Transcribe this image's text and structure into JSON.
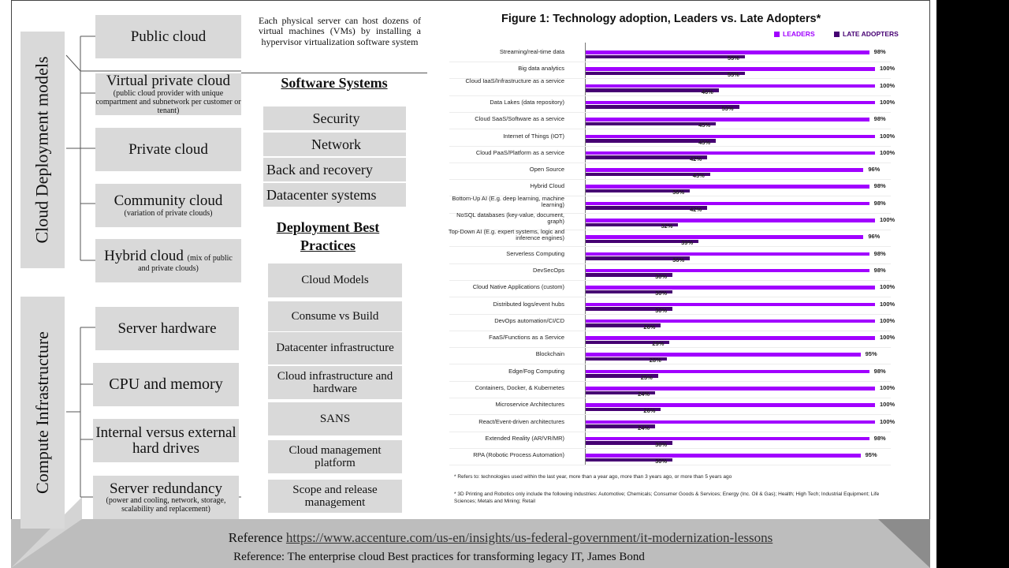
{
  "left": {
    "cloud_deployment_label": "Cloud Deployment models",
    "compute_label": "Compute Infrastructure",
    "deployment_models": [
      {
        "main": "Public cloud",
        "sub": ""
      },
      {
        "main": "Virtual private cloud",
        "sub": "(public cloud provider with unique compartment and subnetwork per customer or tenant)"
      },
      {
        "main": "Private cloud",
        "sub": ""
      },
      {
        "main": "Community cloud",
        "sub": "(variation of private clouds)"
      },
      {
        "main": "Hybrid cloud ",
        "inline": "(mix of public",
        "sub": "and private clouds)"
      }
    ],
    "compute_items": [
      {
        "main": "Server hardware",
        "sub": ""
      },
      {
        "main": "CPU and memory",
        "sub": ""
      },
      {
        "main": "Internal versus external hard drives",
        "sub": ""
      },
      {
        "main": "Server redundancy",
        "sub": "(power and cooling, network, storage, scalability and replacement)"
      }
    ]
  },
  "middle": {
    "note": "Each physical server can host dozens of virtual machines (VMs) by installing a hypervisor virtualization software system",
    "software_heading": "Software Systems",
    "software_items": [
      "Security",
      "Network",
      "Back and recovery",
      "Datacenter systems"
    ],
    "best_heading": "Deployment Best Practices",
    "best_items": [
      "Cloud Models",
      "Consume vs Build",
      "Datacenter infrastructure",
      "Cloud infrastructure and hardware",
      "SANS",
      "Cloud management platform",
      "Scope and release management"
    ]
  },
  "figure": {
    "title": "Figure 1: Technology adoption, Leaders vs. Late Adopters*",
    "legend_leaders": "LEADERS",
    "legend_late": "LATE ADOPTERS",
    "footnote1": "* Refers to: technologies used within the last year, more than a year ago, more than 3 years ago, or more than 5 years ago",
    "footnote2": "* 3D Printing and Robotics only include the following industries: Automotive; Chemicals; Consumer Goods & Services; Energy (Inc. Oil & Gas); Health; High Tech; Industrial Equipment; Life Sciences; Metals and Mining; Retail"
  },
  "chart_data": {
    "type": "bar",
    "title": "Figure 1: Technology adoption, Leaders vs. Late Adopters*",
    "orientation": "horizontal",
    "categories": [
      "Streaming/real-time data",
      "Big data analytics",
      "Cloud IaaS/Infrastructure as a service",
      "Data Lakes (data repository)",
      "Cloud SaaS/Software as a service",
      "Internet of Things (IOT)",
      "Cloud PaaS/Platform as a service",
      "Open Source",
      "Hybrid Cloud",
      "Bottom-Up AI (E.g. deep learning, machine learning)",
      "NoSQL databases (key-value, document, graph)",
      "Top-Down AI (E.g. expert systems, logic and inference engines)",
      "Serverless Computing",
      "DevSecOps",
      "Cloud Native Applications (custom)",
      "Distributed logs/event hubs",
      "DevOps automation/CI/CD",
      "FaaS/Functions as a Service",
      "Blockchain",
      "Edge/Fog Computing",
      "Containers, Docker, & Kubernetes",
      "Microservice Architectures",
      "React/Event-driven architectures",
      "Extended Reality (AR/VR/MR)",
      "RPA (Robotic Process Automation)"
    ],
    "series": [
      {
        "name": "LEADERS",
        "color": "#a100ff",
        "values": [
          98,
          100,
          100,
          100,
          98,
          100,
          100,
          96,
          98,
          98,
          100,
          96,
          98,
          98,
          100,
          100,
          100,
          100,
          95,
          98,
          100,
          100,
          100,
          98,
          95
        ]
      },
      {
        "name": "LATE ADOPTERS",
        "color": "#460073",
        "values": [
          55,
          55,
          46,
          53,
          45,
          45,
          42,
          43,
          36,
          42,
          32,
          39,
          36,
          30,
          30,
          30,
          26,
          29,
          28,
          25,
          24,
          26,
          24,
          30,
          30
        ]
      }
    ],
    "value_suffix": "%",
    "legend": "top-right"
  },
  "references": {
    "prefix": "Reference ",
    "link": "https://www.accenture.com/us-en/insights/us-federal-government/it-modernization-lessons",
    "second": "Reference: The enterprise cloud Best practices for transforming legacy IT, James Bond"
  }
}
